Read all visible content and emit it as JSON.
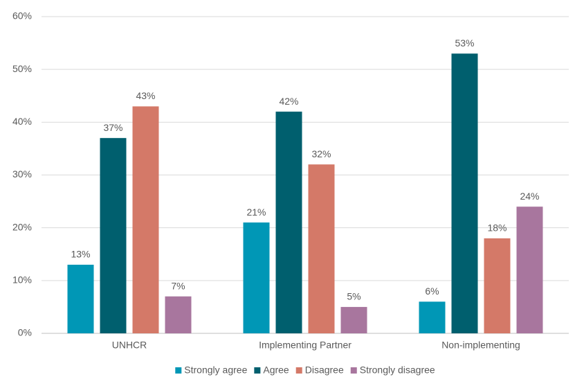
{
  "chart_data": {
    "type": "bar",
    "categories": [
      "UNHCR",
      "Implementing Partner",
      "Non-implementing"
    ],
    "series": [
      {
        "name": "Strongly agree",
        "color": "#0097b6",
        "values": [
          13,
          21,
          6
        ],
        "value_labels": [
          "13%",
          "21%",
          "6%"
        ]
      },
      {
        "name": "Agree",
        "color": "#005f6e",
        "values": [
          37,
          42,
          53
        ],
        "value_labels": [
          "37%",
          "42%",
          "53%"
        ]
      },
      {
        "name": "Disagree",
        "color": "#d47968",
        "values": [
          43,
          32,
          18
        ],
        "value_labels": [
          "43%",
          "32%",
          "18%"
        ]
      },
      {
        "name": "Strongly disagree",
        "color": "#a8769e",
        "values": [
          7,
          5,
          24
        ],
        "value_labels": [
          "7%",
          "5%",
          "24%"
        ]
      }
    ],
    "ylim": [
      0,
      60
    ],
    "yticks": [
      {
        "value": 0,
        "label": "0%"
      },
      {
        "value": 10,
        "label": "10%"
      },
      {
        "value": 20,
        "label": "20%"
      },
      {
        "value": 30,
        "label": "30%"
      },
      {
        "value": 40,
        "label": "40%"
      },
      {
        "value": 50,
        "label": "50%"
      },
      {
        "value": 60,
        "label": "60%"
      }
    ],
    "grid": true,
    "legend": "bottom"
  }
}
